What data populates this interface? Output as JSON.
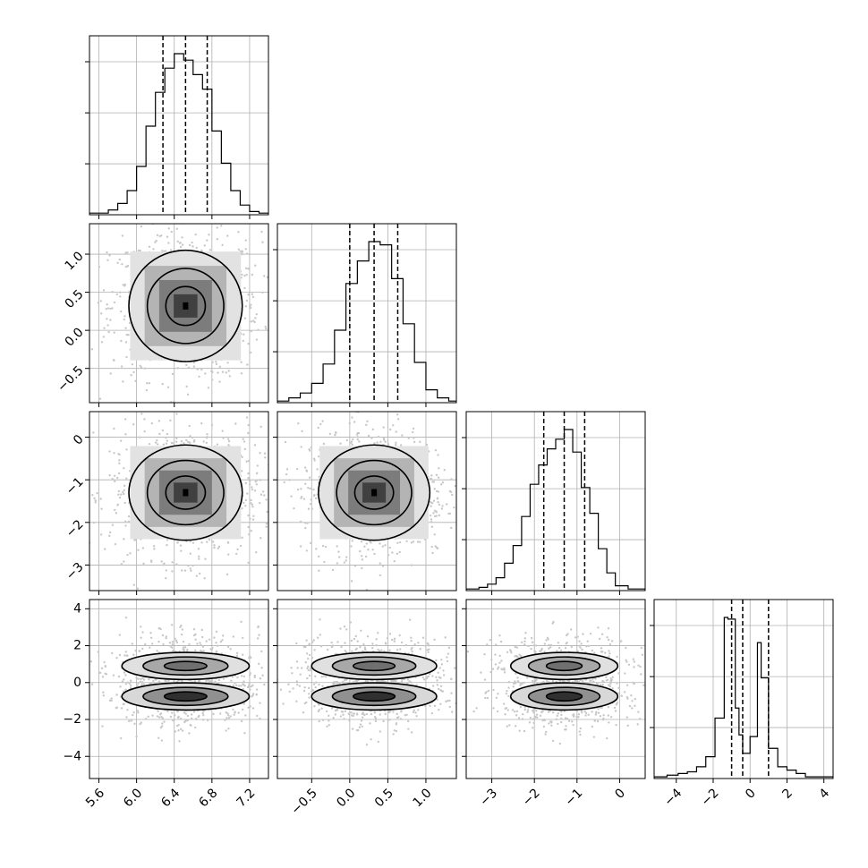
{
  "chart_data": {
    "type": "corner",
    "grid": true,
    "dims": [
      {
        "range": [
          5.5,
          7.4
        ],
        "ticks": [
          5.6,
          6.0,
          6.4,
          6.8,
          7.2
        ],
        "tick_labels": [
          "5.6",
          "6.0",
          "6.4",
          "6.8",
          "7.2"
        ],
        "quantiles": [
          6.28,
          6.52,
          6.75
        ],
        "hist": {
          "bin_edges": [
            5.5,
            5.6,
            5.7,
            5.8,
            5.9,
            6.0,
            6.1,
            6.2,
            6.3,
            6.4,
            6.5,
            6.6,
            6.7,
            6.8,
            6.9,
            7.0,
            7.1,
            7.2,
            7.3,
            7.4
          ],
          "values": [
            0.01,
            0.01,
            0.03,
            0.07,
            0.15,
            0.3,
            0.55,
            0.76,
            0.91,
            1.0,
            0.96,
            0.87,
            0.78,
            0.52,
            0.32,
            0.15,
            0.06,
            0.02,
            0.01
          ]
        }
      },
      {
        "range": [
          -0.95,
          1.4
        ],
        "ticks": [
          -0.5,
          0.0,
          0.5,
          1.0
        ],
        "tick_labels": [
          "−0.5",
          "0.0",
          "0.5",
          "1.0"
        ],
        "quantiles": [
          0.0,
          0.32,
          0.63
        ],
        "hist": {
          "bin_edges": [
            -0.95,
            -0.8,
            -0.65,
            -0.5,
            -0.35,
            -0.2,
            -0.05,
            0.1,
            0.25,
            0.4,
            0.55,
            0.7,
            0.85,
            1.0,
            1.15,
            1.3,
            1.4
          ],
          "values": [
            0.01,
            0.03,
            0.06,
            0.12,
            0.24,
            0.45,
            0.74,
            0.88,
            1.0,
            0.98,
            0.77,
            0.49,
            0.25,
            0.08,
            0.03,
            0.01
          ]
        }
      },
      {
        "range": [
          -3.6,
          0.6
        ],
        "ticks": [
          -3,
          -2,
          -1,
          0
        ],
        "tick_labels": [
          "−3",
          "−2",
          "−1",
          "0"
        ],
        "quantiles": [
          -1.78,
          -1.3,
          -0.82
        ],
        "hist": {
          "bin_edges": [
            -3.6,
            -3.3,
            -3.1,
            -2.9,
            -2.7,
            -2.5,
            -2.3,
            -2.1,
            -1.9,
            -1.7,
            -1.5,
            -1.3,
            -1.1,
            -0.9,
            -0.7,
            -0.5,
            -0.3,
            -0.1,
            0.2,
            0.6
          ],
          "values": [
            0.01,
            0.02,
            0.04,
            0.08,
            0.17,
            0.28,
            0.46,
            0.66,
            0.78,
            0.88,
            0.94,
            1.0,
            0.86,
            0.64,
            0.48,
            0.26,
            0.11,
            0.03,
            0.01
          ]
        }
      },
      {
        "range": [
          -5.2,
          4.5
        ],
        "ticks": [
          -4,
          -2,
          0,
          2,
          4
        ],
        "tick_labels": [
          "−4",
          "−2",
          "0",
          "2",
          "4"
        ],
        "quantiles": [
          -1.0,
          -0.4,
          1.0
        ],
        "hist": {
          "bin_edges": [
            -5.2,
            -4.5,
            -3.9,
            -3.4,
            -2.9,
            -2.4,
            -1.9,
            -1.4,
            -1.2,
            -0.8,
            -0.6,
            -0.4,
            0.0,
            0.4,
            0.6,
            1.0,
            1.5,
            2.0,
            2.5,
            3.0,
            3.5,
            4.5
          ],
          "values": [
            0.01,
            0.02,
            0.03,
            0.04,
            0.07,
            0.13,
            0.36,
            0.96,
            0.95,
            0.42,
            0.26,
            0.15,
            0.25,
            0.81,
            0.6,
            0.18,
            0.07,
            0.05,
            0.03,
            0.01,
            0.01
          ]
        }
      }
    ],
    "pairs": [
      {
        "x_dim": 0,
        "y_dim": 1,
        "center": [
          6.52,
          0.32
        ],
        "sigma": [
          0.25,
          0.3
        ],
        "contour_scale": [
          0.28,
          0.34
        ]
      },
      {
        "x_dim": 0,
        "y_dim": 2,
        "center": [
          6.52,
          -1.3
        ],
        "sigma": [
          0.25,
          0.48
        ],
        "contour_scale": [
          0.28,
          0.52
        ]
      },
      {
        "x_dim": 1,
        "y_dim": 2,
        "center": [
          0.32,
          -1.3
        ],
        "sigma": [
          0.3,
          0.48
        ],
        "contour_scale": [
          0.34,
          0.52
        ]
      },
      {
        "x_dim": 0,
        "y_dim": 3,
        "center": [
          6.52,
          0.0
        ],
        "sigma": [
          0.25,
          0.8
        ],
        "contour_scale": [
          0.28,
          0.5
        ],
        "bimodal": [
          0.9,
          -0.75
        ]
      },
      {
        "x_dim": 1,
        "y_dim": 3,
        "center": [
          0.32,
          0.0
        ],
        "sigma": [
          0.3,
          0.8
        ],
        "contour_scale": [
          0.34,
          0.5
        ],
        "bimodal": [
          0.9,
          -0.75
        ]
      },
      {
        "x_dim": 2,
        "y_dim": 3,
        "center": [
          -1.3,
          0.0
        ],
        "sigma": [
          0.48,
          0.8
        ],
        "contour_scale": [
          0.52,
          0.5
        ],
        "bimodal": [
          0.9,
          -0.75
        ]
      }
    ]
  }
}
